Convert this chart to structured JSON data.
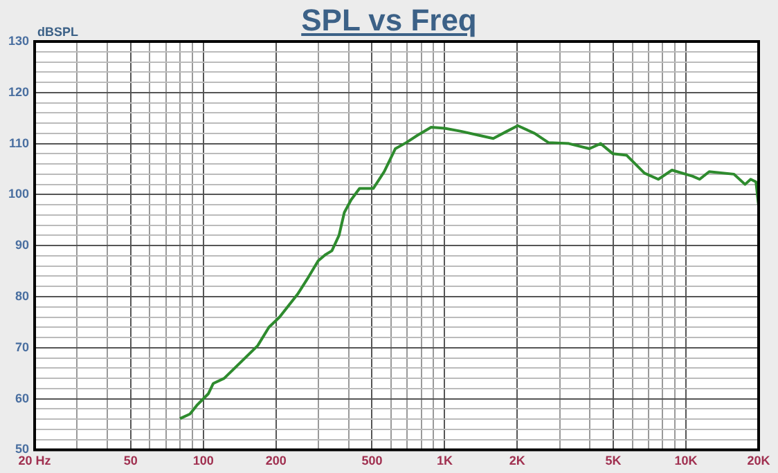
{
  "chart_data": {
    "type": "line",
    "title": "SPL vs Freq",
    "ylabel": "dBSPL",
    "log": "x",
    "grid": true,
    "marker": "none",
    "line_style": "solid",
    "xlim": [
      20,
      20000
    ],
    "ylim": [
      50,
      130
    ],
    "xticks": [
      {
        "value": 20,
        "label": "20 Hz"
      },
      {
        "value": 30,
        "label": null
      },
      {
        "value": 40,
        "label": null
      },
      50,
      {
        "value": 60,
        "label": null
      },
      {
        "value": 70,
        "label": null
      },
      {
        "value": 80,
        "label": null
      },
      {
        "value": 90,
        "label": null
      },
      100,
      200,
      {
        "value": 300,
        "label": null
      },
      {
        "value": 400,
        "label": null
      },
      500,
      {
        "value": 600,
        "label": null
      },
      {
        "value": 700,
        "label": null
      },
      {
        "value": 800,
        "label": null
      },
      {
        "value": 900,
        "label": null
      },
      {
        "value": 1000,
        "label": "1K"
      },
      {
        "value": 2000,
        "label": "2K"
      },
      {
        "value": 3000,
        "label": null
      },
      {
        "value": 4000,
        "label": null
      },
      {
        "value": 5000,
        "label": "5K"
      },
      {
        "value": 6000,
        "label": null
      },
      {
        "value": 7000,
        "label": null
      },
      {
        "value": 8000,
        "label": null
      },
      {
        "value": 9000,
        "label": null
      },
      {
        "value": 10000,
        "label": "10K"
      },
      {
        "value": 20000,
        "label": "20K"
      }
    ],
    "yticks": [
      50,
      {
        "value": 52,
        "label": null
      },
      {
        "value": 54,
        "label": null
      },
      {
        "value": 56,
        "label": null
      },
      {
        "value": 58,
        "label": null
      },
      60,
      {
        "value": 62,
        "label": null
      },
      {
        "value": 64,
        "label": null
      },
      {
        "value": 66,
        "label": null
      },
      {
        "value": 68,
        "label": null
      },
      70,
      {
        "value": 72,
        "label": null
      },
      {
        "value": 74,
        "label": null
      },
      {
        "value": 76,
        "label": null
      },
      {
        "value": 78,
        "label": null
      },
      80,
      {
        "value": 82,
        "label": null
      },
      {
        "value": 84,
        "label": null
      },
      {
        "value": 86,
        "label": null
      },
      {
        "value": 88,
        "label": null
      },
      90,
      {
        "value": 92,
        "label": null
      },
      {
        "value": 94,
        "label": null
      },
      {
        "value": 96,
        "label": null
      },
      {
        "value": 98,
        "label": null
      },
      100,
      {
        "value": 102,
        "label": null
      },
      {
        "value": 104,
        "label": null
      },
      {
        "value": 106,
        "label": null
      },
      {
        "value": 108,
        "label": null
      },
      110,
      {
        "value": 112,
        "label": null
      },
      {
        "value": 114,
        "label": null
      },
      {
        "value": 116,
        "label": null
      },
      {
        "value": 118,
        "label": null
      },
      120,
      {
        "value": 122,
        "label": null
      },
      {
        "value": 124,
        "label": null
      },
      {
        "value": 126,
        "label": null
      },
      {
        "value": 128,
        "label": null
      },
      130
    ],
    "x": [
      80,
      88,
      94,
      105,
      110,
      122,
      149,
      168,
      187,
      207,
      246,
      270,
      299,
      320,
      341,
      365,
      384,
      410,
      444,
      506,
      562,
      625,
      694,
      771,
      879,
      1000,
      1170,
      1390,
      1590,
      1810,
      2010,
      2360,
      2690,
      3270,
      3980,
      4430,
      4980,
      5680,
      6730,
      7680,
      8750,
      10660,
      11390,
      12480,
      15810,
      17570,
      18540,
      19500,
      20000
    ],
    "series": [
      {
        "color": "#2e8b2e",
        "values": [
          56.1,
          57,
          58.7,
          61,
          63,
          64,
          68,
          70.4,
          74,
          76,
          80.5,
          83.5,
          87,
          88.2,
          89,
          92,
          96.5,
          99,
          101.2,
          101.2,
          104.5,
          109,
          110.2,
          111.6,
          113.2,
          113,
          112.4,
          111.6,
          111,
          112.4,
          113.5,
          112,
          110.2,
          110,
          109,
          110,
          108,
          107.7,
          104.2,
          103,
          104.8,
          103.6,
          103,
          104.5,
          104,
          102,
          103,
          102.5,
          97.8
        ]
      }
    ]
  }
}
